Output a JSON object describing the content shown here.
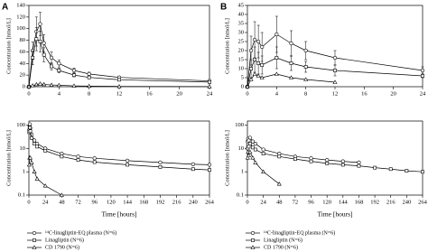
{
  "chart_data": [
    {
      "type": "line",
      "label": "A",
      "y_label": "Concentration [nmol/L]",
      "xlim": [
        0,
        24
      ],
      "xticks": [
        0,
        4,
        8,
        12,
        16,
        20,
        24
      ],
      "ylim": [
        0,
        140
      ],
      "yticks": [
        0,
        20,
        40,
        60,
        80,
        100,
        120,
        140
      ],
      "series": [
        {
          "marker": "circle",
          "color": "#000000",
          "x": [
            0,
            0.5,
            1,
            1.5,
            2,
            3,
            4,
            6,
            8,
            12,
            24
          ],
          "values": [
            0,
            62,
            95,
            108,
            75,
            50,
            40,
            28,
            22,
            16,
            10
          ],
          "errors": [
            0,
            15,
            25,
            20,
            15,
            10,
            6,
            4,
            3,
            2,
            2
          ]
        },
        {
          "marker": "square",
          "color": "#000000",
          "x": [
            0,
            0.5,
            1,
            1.5,
            2,
            3,
            4,
            6,
            8,
            12,
            24
          ],
          "values": [
            0,
            50,
            82,
            78,
            55,
            35,
            28,
            20,
            16,
            12,
            8
          ],
          "errors": [
            0,
            12,
            20,
            18,
            12,
            6,
            4,
            3,
            2,
            2,
            1
          ]
        },
        {
          "marker": "triangle",
          "color": "#000000",
          "x": [
            0,
            0.5,
            1,
            1.5,
            2,
            3,
            4,
            6,
            8,
            12,
            24
          ],
          "values": [
            0,
            2,
            4,
            5,
            4,
            3,
            2.5,
            1.5,
            1,
            0.5,
            0.3
          ]
        }
      ]
    },
    {
      "type": "line",
      "label": "B",
      "y_label": "Concentration [nmol/L]",
      "xlim": [
        0,
        24
      ],
      "xticks": [
        0,
        4,
        8,
        12,
        16,
        20,
        24
      ],
      "ylim": [
        0,
        45
      ],
      "yticks": [
        0,
        5,
        10,
        15,
        20,
        25,
        30,
        35,
        40,
        45
      ],
      "series": [
        {
          "marker": "circle",
          "color": "#000000",
          "x": [
            0,
            0.5,
            1,
            1.5,
            2,
            4,
            6,
            8,
            12,
            24
          ],
          "values": [
            0,
            20,
            26,
            25,
            22,
            29,
            24,
            20,
            16,
            9
          ],
          "errors": [
            0,
            8,
            10,
            9,
            8,
            10,
            7,
            5,
            4,
            2
          ]
        },
        {
          "marker": "square",
          "color": "#000000",
          "x": [
            0,
            0.5,
            1,
            1.5,
            2,
            4,
            6,
            8,
            12,
            24
          ],
          "values": [
            0,
            10,
            15,
            13,
            12,
            16,
            13,
            11,
            9,
            6
          ],
          "errors": [
            0,
            5,
            7,
            6,
            5,
            6,
            4,
            3,
            3,
            1
          ]
        },
        {
          "marker": "triangle",
          "color": "#000000",
          "x": [
            0,
            0.5,
            1,
            1.5,
            2,
            4,
            6,
            8,
            12
          ],
          "values": [
            0,
            4,
            7,
            6,
            5,
            7,
            5,
            4,
            2.5
          ]
        }
      ]
    },
    {
      "type": "line",
      "log_y": true,
      "y_label": "Concentration [nmol/L]",
      "x_label": "Time [hours]",
      "xlim": [
        0,
        264
      ],
      "xticks": [
        0,
        24,
        48,
        72,
        96,
        120,
        144,
        168,
        192,
        216,
        240,
        264
      ],
      "ylim": [
        0.1,
        150
      ],
      "yticks": [
        0.1,
        1,
        10,
        100
      ],
      "series": [
        {
          "name": "¹⁴C-linagliptin-EQ plasma (N=6)",
          "marker": "circle",
          "color": "#000000",
          "x": [
            0.5,
            1,
            1.5,
            2,
            4,
            8,
            12,
            24,
            48,
            72,
            96,
            144,
            192,
            240,
            264
          ],
          "values": [
            62,
            95,
            108,
            75,
            40,
            22,
            16,
            10,
            6,
            4.5,
            3.8,
            3,
            2.5,
            2.1,
            2
          ]
        },
        {
          "name": "Linagliptin (N=6)",
          "marker": "square",
          "color": "#000000",
          "x": [
            0.5,
            1,
            1.5,
            2,
            4,
            8,
            12,
            24,
            48,
            72,
            96,
            144,
            192,
            240,
            264
          ],
          "values": [
            50,
            82,
            78,
            55,
            28,
            16,
            12,
            8,
            4.5,
            3.2,
            2.6,
            2,
            1.6,
            1.3,
            1.2
          ]
        },
        {
          "name": "CD 1790 (N=6)",
          "marker": "triangle",
          "color": "#000000",
          "x": [
            0.5,
            1,
            2,
            4,
            8,
            12,
            24,
            48
          ],
          "values": [
            2,
            4,
            4,
            2.5,
            1,
            0.5,
            0.25,
            0.1
          ]
        }
      ]
    },
    {
      "type": "line",
      "log_y": true,
      "y_label": "Concentration [nmol/L]",
      "x_label": "Time [hours]",
      "xlim": [
        0,
        264
      ],
      "xticks": [
        0,
        24,
        48,
        72,
        96,
        120,
        144,
        168,
        192,
        216,
        240,
        264
      ],
      "ylim": [
        0.1,
        150
      ],
      "yticks": [
        0.1,
        1,
        10,
        100
      ],
      "series": [
        {
          "name": "¹⁴C-linagliptin-EQ plasma (N=6)",
          "marker": "circle",
          "color": "#000000",
          "x": [
            0.5,
            1,
            2,
            4,
            8,
            12,
            24,
            48,
            72,
            96,
            120,
            144,
            168
          ],
          "values": [
            20,
            26,
            22,
            29,
            20,
            16,
            9,
            6,
            4.5,
            3.8,
            3.2,
            2.8,
            2.5
          ]
        },
        {
          "name": "Linagliptin (N=6)",
          "marker": "square",
          "color": "#000000",
          "x": [
            0.5,
            1,
            2,
            4,
            8,
            12,
            24,
            48,
            72,
            96,
            120,
            144,
            168,
            192,
            216,
            240,
            264
          ],
          "values": [
            10,
            15,
            12,
            16,
            11,
            9,
            6,
            4.5,
            3.5,
            2.8,
            2.3,
            2,
            1.8,
            1.5,
            1.3,
            1.1,
            1
          ]
        },
        {
          "name": "CD 1790 (N=6)",
          "marker": "triangle",
          "color": "#000000",
          "x": [
            0.5,
            1,
            2,
            4,
            8,
            12,
            24,
            48
          ],
          "values": [
            4,
            7,
            5,
            7,
            4,
            2.5,
            1,
            0.3
          ]
        }
      ]
    }
  ]
}
